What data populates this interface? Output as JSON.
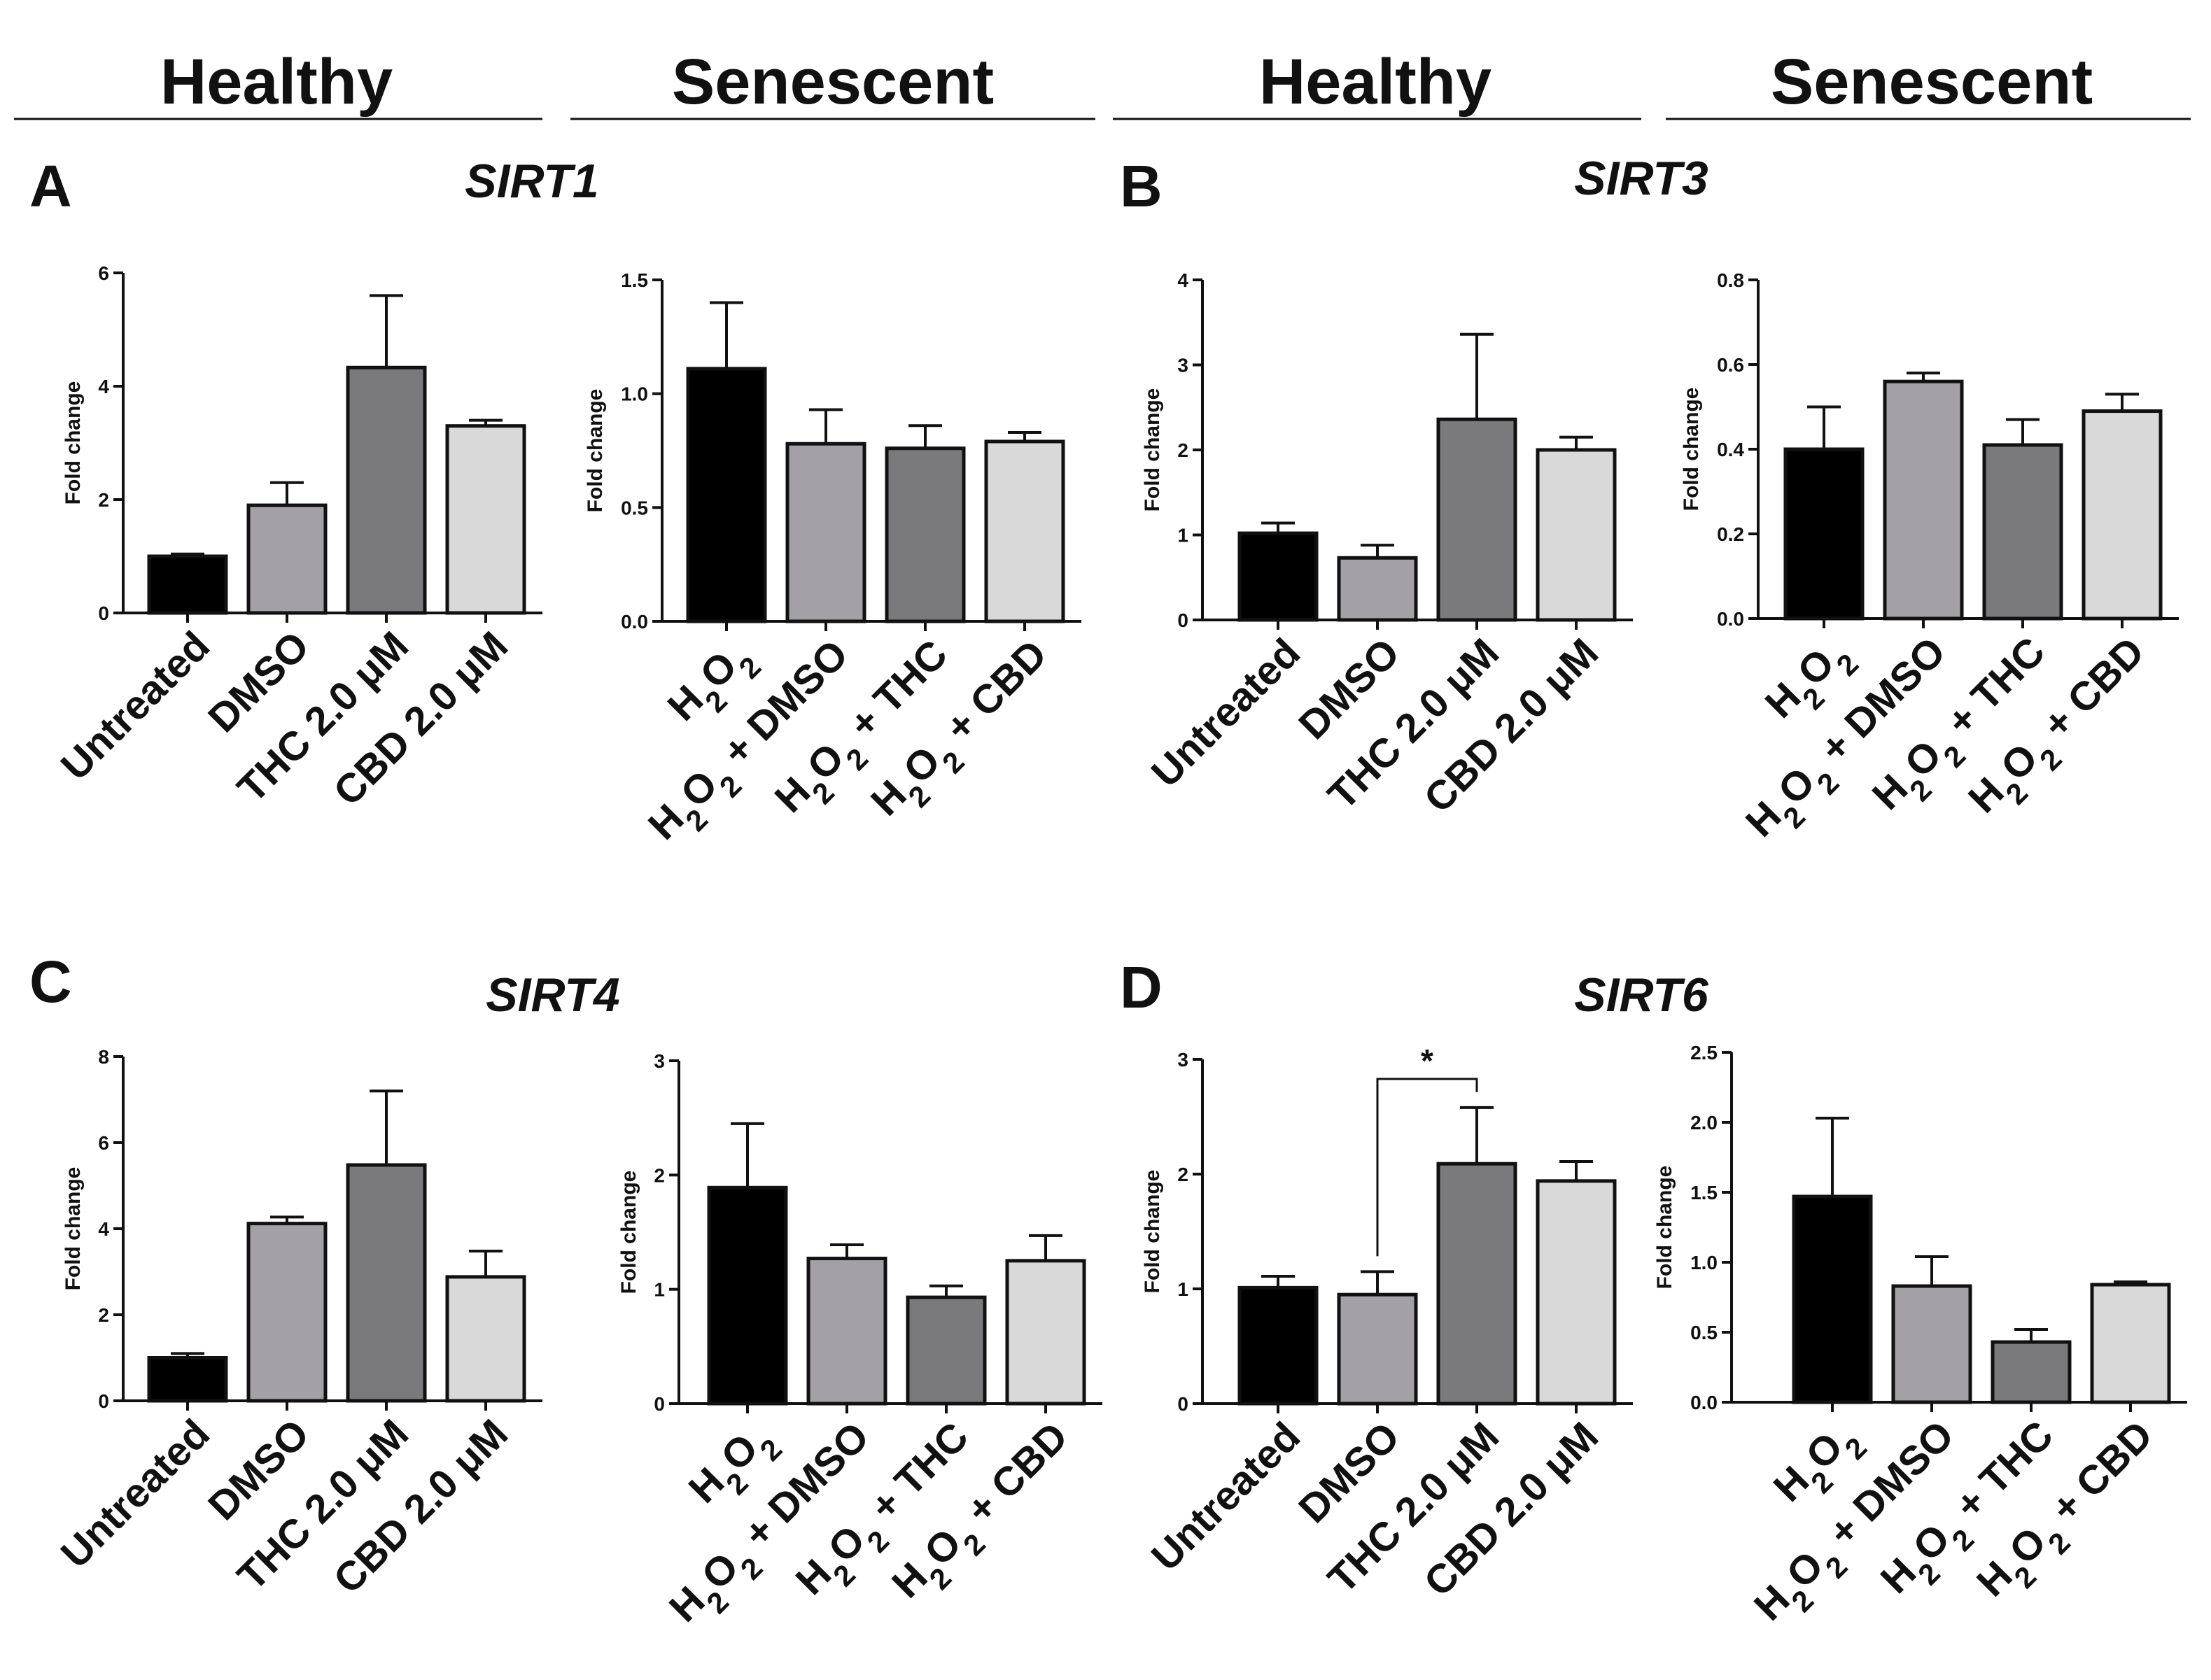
{
  "headers": [
    "Healthy",
    "Senescent",
    "Healthy",
    "Senescent"
  ],
  "panels": [
    {
      "letter": "A",
      "gene": "SIRT1"
    },
    {
      "letter": "B",
      "gene": "SIRT3"
    },
    {
      "letter": "C",
      "gene": "SIRT4"
    },
    {
      "letter": "D",
      "gene": "SIRT6"
    }
  ],
  "colors": {
    "black": "#000000",
    "mid": "#a3a1a6",
    "dark": "#7a797b",
    "light": "#d9d9d9"
  },
  "chart_data": [
    {
      "type": "bar",
      "title": "SIRT1",
      "group": "Healthy",
      "ylabel": "Fold change",
      "ylim": [
        0,
        6
      ],
      "yticks": [
        "0",
        "2",
        "4",
        "6"
      ],
      "categories": [
        "Untreated",
        "DMSO",
        "THC 2.0 μM",
        "CBD 2.0 μM"
      ],
      "values": [
        1.0,
        1.9,
        4.33,
        3.3
      ],
      "errors": [
        0.04,
        0.4,
        1.27,
        0.1
      ],
      "colors": [
        "#000000",
        "#a3a1a6",
        "#7a797b",
        "#d9d9d9"
      ]
    },
    {
      "type": "bar",
      "title": "SIRT1",
      "group": "Senescent",
      "ylabel": "Fold change",
      "ylim": [
        0,
        1.5
      ],
      "yticks": [
        "0.0",
        "0.5",
        "1.0",
        "1.5"
      ],
      "categories": [
        "H2O2",
        "H2O2 + DMSO",
        "H2O2 + THC",
        "H2O2 + CBD"
      ],
      "values": [
        1.11,
        0.78,
        0.76,
        0.79
      ],
      "errors": [
        0.29,
        0.15,
        0.1,
        0.04
      ],
      "colors": [
        "#000000",
        "#a3a1a6",
        "#7a797b",
        "#d9d9d9"
      ]
    },
    {
      "type": "bar",
      "title": "SIRT3",
      "group": "Healthy",
      "ylabel": "Fold change",
      "ylim": [
        0,
        4
      ],
      "yticks": [
        "0",
        "1",
        "2",
        "3",
        "4"
      ],
      "categories": [
        "Untreated",
        "DMSO",
        "THC 2.0 μM",
        "CBD 2.0 μM"
      ],
      "values": [
        1.02,
        0.73,
        2.36,
        2.0
      ],
      "errors": [
        0.12,
        0.15,
        1.0,
        0.15
      ],
      "colors": [
        "#000000",
        "#a3a1a6",
        "#7a797b",
        "#d9d9d9"
      ]
    },
    {
      "type": "bar",
      "title": "SIRT3",
      "group": "Senescent",
      "ylabel": "Fold change",
      "ylim": [
        0,
        0.8
      ],
      "yticks": [
        "0.0",
        "0.2",
        "0.4",
        "0.6",
        "0.8"
      ],
      "categories": [
        "H2O2",
        "H2O2 + DMSO",
        "H2O2 + THC",
        "H2O2 + CBD"
      ],
      "values": [
        0.4,
        0.56,
        0.41,
        0.49
      ],
      "errors": [
        0.1,
        0.02,
        0.06,
        0.04
      ],
      "colors": [
        "#000000",
        "#a3a1a6",
        "#7a797b",
        "#d9d9d9"
      ]
    },
    {
      "type": "bar",
      "title": "SIRT4",
      "group": "Healthy",
      "ylabel": "Fold change",
      "ylim": [
        0,
        8
      ],
      "yticks": [
        "0",
        "2",
        "4",
        "6",
        "8"
      ],
      "categories": [
        "Untreated",
        "DMSO",
        "THC 2.0 μM",
        "CBD 2.0 μM"
      ],
      "values": [
        1.0,
        4.12,
        5.48,
        2.88
      ],
      "errors": [
        0.1,
        0.15,
        1.72,
        0.6
      ],
      "colors": [
        "#000000",
        "#a3a1a6",
        "#7a797b",
        "#d9d9d9"
      ]
    },
    {
      "type": "bar",
      "title": "SIRT4",
      "group": "Senescent",
      "ylabel": "Fold change",
      "ylim": [
        0,
        3
      ],
      "yticks": [
        "0",
        "1",
        "2",
        "3"
      ],
      "categories": [
        "H2O2",
        "H2O2 + DMSO",
        "H2O2 + THC",
        "H2O2 + CBD"
      ],
      "values": [
        1.89,
        1.27,
        0.93,
        1.25
      ],
      "errors": [
        0.56,
        0.12,
        0.1,
        0.22
      ],
      "colors": [
        "#000000",
        "#a3a1a6",
        "#7a797b",
        "#d9d9d9"
      ]
    },
    {
      "type": "bar",
      "title": "SIRT6",
      "group": "Healthy",
      "ylabel": "Fold change",
      "ylim": [
        0,
        3
      ],
      "yticks": [
        "0",
        "1",
        "2",
        "3"
      ],
      "categories": [
        "Untreated",
        "DMSO",
        "THC 2.0 μM",
        "CBD 2.0 μM"
      ],
      "values": [
        1.01,
        0.95,
        2.09,
        1.94
      ],
      "errors": [
        0.1,
        0.2,
        0.49,
        0.17
      ],
      "colors": [
        "#000000",
        "#a3a1a6",
        "#7a797b",
        "#d9d9d9"
      ],
      "significance": {
        "from": 1,
        "to": 2,
        "label": "*"
      }
    },
    {
      "type": "bar",
      "title": "SIRT6",
      "group": "Senescent",
      "ylabel": "Fold change",
      "ylim": [
        0,
        2.5
      ],
      "yticks": [
        "0.0",
        "0.5",
        "1.0",
        "1.5",
        "2.0",
        "2.5"
      ],
      "categories": [
        "H2O2",
        "H2O2 + DMSO",
        "H2O2 + THC",
        "H2O2 + CBD"
      ],
      "values": [
        1.47,
        0.83,
        0.43,
        0.84
      ],
      "errors": [
        0.56,
        0.21,
        0.09,
        0.02
      ],
      "colors": [
        "#000000",
        "#a3a1a6",
        "#7a797b",
        "#d9d9d9"
      ]
    }
  ]
}
